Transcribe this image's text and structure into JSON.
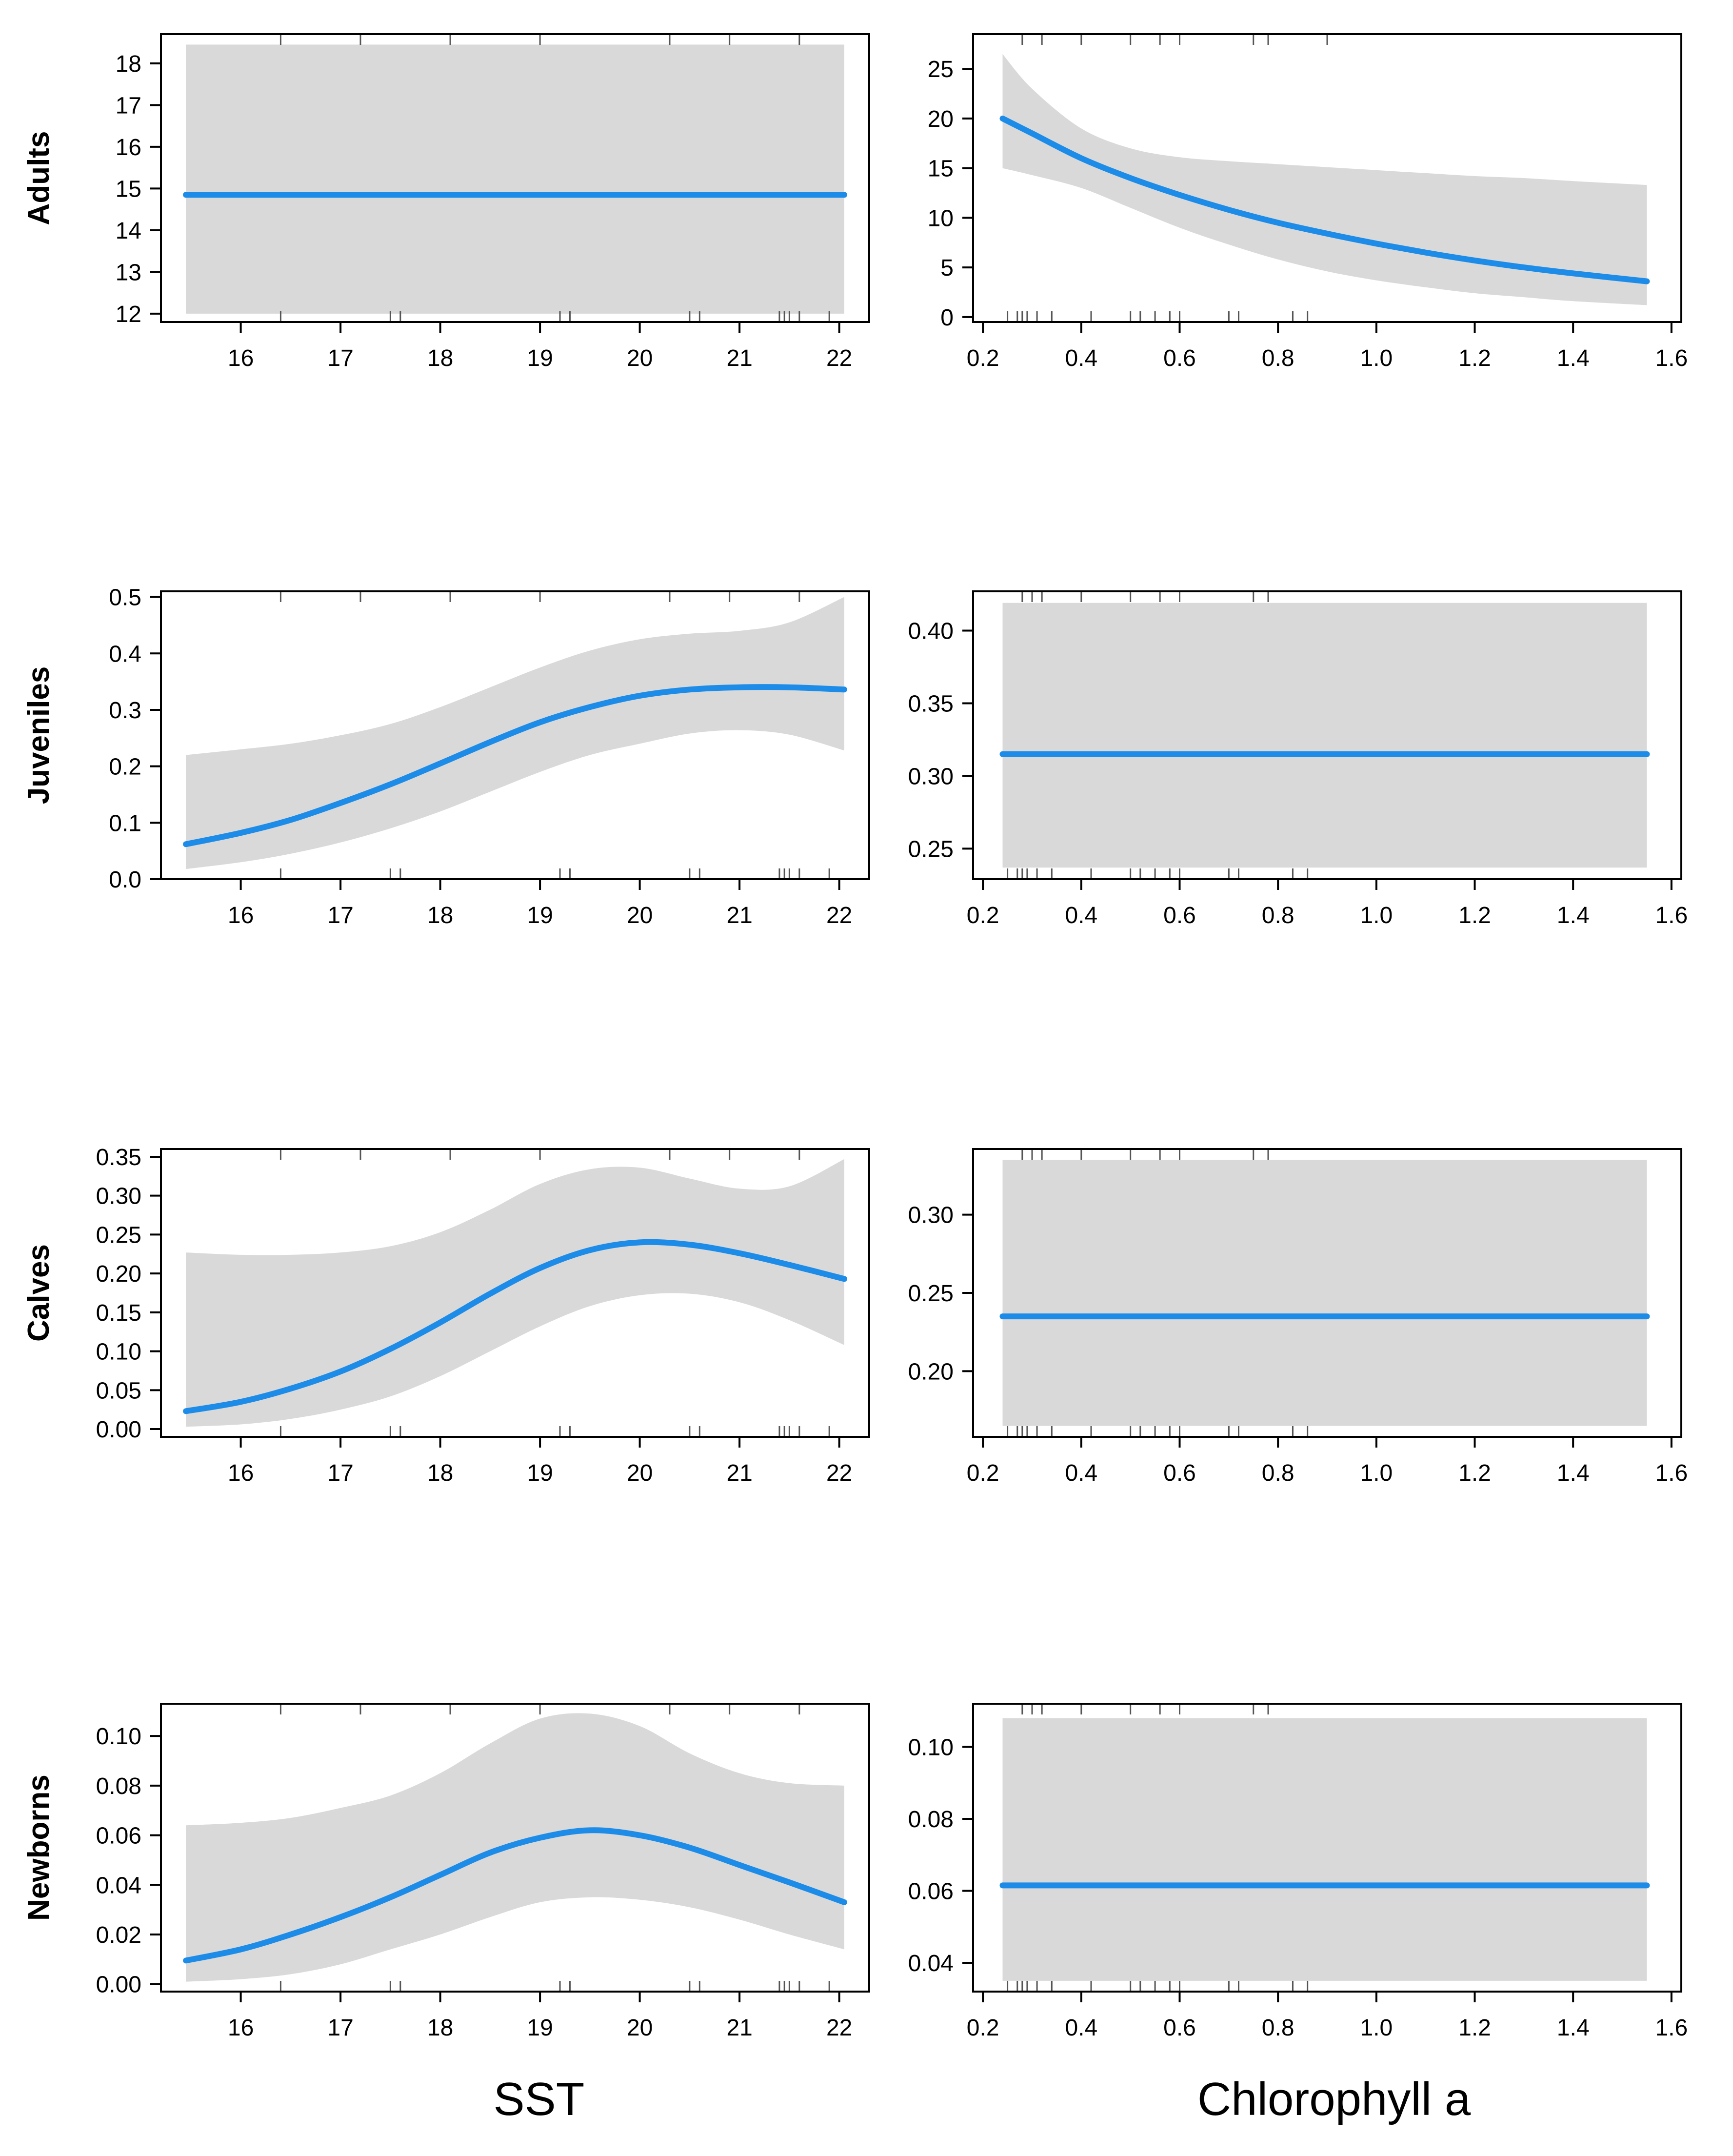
{
  "figure": {
    "x_titles": {
      "left": "SST",
      "right": "Chlorophyll a"
    }
  },
  "colors": {
    "line": "#1c8ce8",
    "band": "#d9d9d9",
    "rug": "#555555",
    "frame": "#000000"
  },
  "chart_data": [
    {
      "id": "adults-sst",
      "type": "line",
      "row_label": "Adults",
      "xlabel": "SST",
      "ylabel": "Adults",
      "xlim": [
        15.2,
        22.3
      ],
      "ylim": [
        11.8,
        18.7
      ],
      "xticks": [
        16,
        17,
        18,
        19,
        20,
        21,
        22
      ],
      "yticks": [
        12,
        13,
        14,
        15,
        16,
        17,
        18
      ],
      "tick_labels_x": [
        "16",
        "17",
        "18",
        "19",
        "20",
        "21",
        "22"
      ],
      "tick_labels_y": [
        "12",
        "13",
        "14",
        "15",
        "16",
        "17",
        "18"
      ],
      "x": [
        15.45,
        22.05
      ],
      "y": [
        14.85,
        14.85
      ],
      "lower": [
        12.0,
        12.0
      ],
      "upper": [
        18.45,
        18.45
      ],
      "rug_top": [
        16.4,
        17.2,
        18.1,
        19.0,
        20.3,
        20.9,
        21.6
      ],
      "rug_bottom": [
        16.4,
        17.5,
        17.6,
        19.2,
        19.3,
        20.5,
        20.6,
        21.4,
        21.45,
        21.5,
        21.6,
        21.9
      ]
    },
    {
      "id": "adults-chl",
      "type": "line",
      "row_label": "",
      "xlabel": "Chlorophyll a",
      "ylabel": "",
      "xlim": [
        0.18,
        1.62
      ],
      "ylim": [
        -0.5,
        28.5
      ],
      "xticks": [
        0.2,
        0.4,
        0.6,
        0.8,
        1.0,
        1.2,
        1.4,
        1.6
      ],
      "yticks": [
        0,
        5,
        10,
        15,
        20,
        25
      ],
      "tick_labels_x": [
        "0.2",
        "0.4",
        "0.6",
        "0.8",
        "1.0",
        "1.2",
        "1.4",
        "1.6"
      ],
      "tick_labels_y": [
        "0",
        "5",
        "10",
        "15",
        "20",
        "25"
      ],
      "x": [
        0.24,
        0.3,
        0.4,
        0.5,
        0.6,
        0.7,
        0.8,
        0.9,
        1.0,
        1.1,
        1.2,
        1.3,
        1.4,
        1.55
      ],
      "y": [
        20.0,
        18.5,
        16.0,
        14.0,
        12.3,
        10.8,
        9.5,
        8.4,
        7.4,
        6.5,
        5.7,
        5.0,
        4.4,
        3.6
      ],
      "lower": [
        15.0,
        14.3,
        13.0,
        11.0,
        9.0,
        7.3,
        5.8,
        4.6,
        3.7,
        3.0,
        2.4,
        2.0,
        1.6,
        1.2
      ],
      "upper": [
        26.5,
        23.0,
        19.0,
        17.0,
        16.1,
        15.7,
        15.4,
        15.1,
        14.8,
        14.5,
        14.2,
        14.0,
        13.7,
        13.3
      ],
      "rug_top": [
        0.28,
        0.32,
        0.4,
        0.5,
        0.56,
        0.6,
        0.75,
        0.78,
        0.9
      ],
      "rug_bottom": [
        0.25,
        0.27,
        0.28,
        0.29,
        0.31,
        0.34,
        0.42,
        0.5,
        0.52,
        0.55,
        0.58,
        0.6,
        0.7,
        0.72,
        0.83,
        0.86
      ]
    },
    {
      "id": "juveniles-sst",
      "type": "line",
      "row_label": "Juveniles",
      "xlabel": "SST",
      "ylabel": "Juveniles",
      "xlim": [
        15.2,
        22.3
      ],
      "ylim": [
        0.0,
        0.51
      ],
      "xticks": [
        16,
        17,
        18,
        19,
        20,
        21,
        22
      ],
      "yticks": [
        0.0,
        0.1,
        0.2,
        0.3,
        0.4,
        0.5
      ],
      "tick_labels_x": [
        "16",
        "17",
        "18",
        "19",
        "20",
        "21",
        "22"
      ],
      "tick_labels_y": [
        "0.0",
        "0.1",
        "0.2",
        "0.3",
        "0.4",
        "0.5"
      ],
      "x": [
        15.45,
        16.0,
        16.5,
        17.0,
        17.5,
        18.0,
        18.5,
        19.0,
        19.5,
        20.0,
        20.5,
        21.0,
        21.5,
        22.05
      ],
      "y": [
        0.062,
        0.082,
        0.105,
        0.135,
        0.168,
        0.205,
        0.243,
        0.278,
        0.305,
        0.325,
        0.336,
        0.34,
        0.34,
        0.336
      ],
      "lower": [
        0.018,
        0.03,
        0.045,
        0.065,
        0.09,
        0.12,
        0.155,
        0.19,
        0.22,
        0.24,
        0.258,
        0.264,
        0.256,
        0.228
      ],
      "upper": [
        0.22,
        0.23,
        0.24,
        0.255,
        0.275,
        0.305,
        0.34,
        0.375,
        0.405,
        0.425,
        0.435,
        0.44,
        0.455,
        0.5
      ],
      "rug_top": [
        16.4,
        17.2,
        18.1,
        19.0,
        20.3,
        20.9,
        21.6
      ],
      "rug_bottom": [
        16.4,
        17.5,
        17.6,
        19.2,
        19.3,
        20.5,
        20.6,
        21.4,
        21.45,
        21.5,
        21.6,
        21.9
      ]
    },
    {
      "id": "juveniles-chl",
      "type": "line",
      "row_label": "",
      "xlabel": "Chlorophyll a",
      "ylabel": "",
      "xlim": [
        0.18,
        1.62
      ],
      "ylim": [
        0.229,
        0.427
      ],
      "xticks": [
        0.2,
        0.4,
        0.6,
        0.8,
        1.0,
        1.2,
        1.4,
        1.6
      ],
      "yticks": [
        0.25,
        0.3,
        0.35,
        0.4
      ],
      "tick_labels_x": [
        "0.2",
        "0.4",
        "0.6",
        "0.8",
        "1.0",
        "1.2",
        "1.4",
        "1.6"
      ],
      "tick_labels_y": [
        "0.25",
        "0.30",
        "0.35",
        "0.40"
      ],
      "x": [
        0.24,
        1.55
      ],
      "y": [
        0.315,
        0.315
      ],
      "lower": [
        0.237,
        0.237
      ],
      "upper": [
        0.419,
        0.419
      ],
      "rug_top": [
        0.28,
        0.3,
        0.32,
        0.4,
        0.5,
        0.56,
        0.6,
        0.75,
        0.78
      ],
      "rug_bottom": [
        0.25,
        0.27,
        0.28,
        0.29,
        0.31,
        0.34,
        0.42,
        0.5,
        0.52,
        0.55,
        0.58,
        0.6,
        0.7,
        0.72,
        0.83,
        0.86
      ]
    },
    {
      "id": "calves-sst",
      "type": "line",
      "row_label": "Calves",
      "xlabel": "SST",
      "ylabel": "Calves",
      "xlim": [
        15.2,
        22.3
      ],
      "ylim": [
        -0.01,
        0.36
      ],
      "xticks": [
        16,
        17,
        18,
        19,
        20,
        21,
        22
      ],
      "yticks": [
        0.0,
        0.05,
        0.1,
        0.15,
        0.2,
        0.25,
        0.3,
        0.35
      ],
      "tick_labels_x": [
        "16",
        "17",
        "18",
        "19",
        "20",
        "21",
        "22"
      ],
      "tick_labels_y": [
        "0.00",
        "0.05",
        "0.10",
        "0.15",
        "0.20",
        "0.25",
        "0.30",
        "0.35"
      ],
      "x": [
        15.45,
        16.0,
        16.5,
        17.0,
        17.5,
        18.0,
        18.5,
        19.0,
        19.5,
        20.0,
        20.5,
        21.0,
        21.5,
        22.05
      ],
      "y": [
        0.023,
        0.035,
        0.052,
        0.074,
        0.103,
        0.137,
        0.174,
        0.207,
        0.23,
        0.24,
        0.237,
        0.226,
        0.211,
        0.193
      ],
      "lower": [
        0.003,
        0.006,
        0.013,
        0.025,
        0.042,
        0.068,
        0.1,
        0.132,
        0.158,
        0.172,
        0.174,
        0.163,
        0.14,
        0.108
      ],
      "upper": [
        0.227,
        0.224,
        0.224,
        0.227,
        0.235,
        0.253,
        0.282,
        0.315,
        0.334,
        0.336,
        0.322,
        0.309,
        0.312,
        0.347
      ],
      "rug_top": [
        16.4,
        17.2,
        18.1,
        19.0,
        20.3,
        20.9,
        21.6
      ],
      "rug_bottom": [
        16.4,
        17.5,
        17.6,
        19.2,
        19.3,
        20.5,
        20.6,
        21.4,
        21.45,
        21.5,
        21.6,
        21.9
      ]
    },
    {
      "id": "calves-chl",
      "type": "line",
      "row_label": "",
      "xlabel": "Chlorophyll a",
      "ylabel": "",
      "xlim": [
        0.18,
        1.62
      ],
      "ylim": [
        0.158,
        0.342
      ],
      "xticks": [
        0.2,
        0.4,
        0.6,
        0.8,
        1.0,
        1.2,
        1.4,
        1.6
      ],
      "yticks": [
        0.2,
        0.25,
        0.3
      ],
      "tick_labels_x": [
        "0.2",
        "0.4",
        "0.6",
        "0.8",
        "1.0",
        "1.2",
        "1.4",
        "1.6"
      ],
      "tick_labels_y": [
        "0.20",
        "0.25",
        "0.30"
      ],
      "x": [
        0.24,
        1.55
      ],
      "y": [
        0.235,
        0.235
      ],
      "lower": [
        0.165,
        0.165
      ],
      "upper": [
        0.335,
        0.335
      ],
      "rug_top": [
        0.28,
        0.3,
        0.32,
        0.4,
        0.5,
        0.56,
        0.6,
        0.75,
        0.78
      ],
      "rug_bottom": [
        0.25,
        0.27,
        0.28,
        0.29,
        0.31,
        0.34,
        0.42,
        0.5,
        0.52,
        0.55,
        0.58,
        0.6,
        0.7,
        0.72,
        0.83,
        0.86
      ]
    },
    {
      "id": "newborns-sst",
      "type": "line",
      "row_label": "Newborns",
      "xlabel": "SST",
      "ylabel": "Newborns",
      "xlim": [
        15.2,
        22.3
      ],
      "ylim": [
        -0.003,
        0.113
      ],
      "xticks": [
        16,
        17,
        18,
        19,
        20,
        21,
        22
      ],
      "yticks": [
        0.0,
        0.02,
        0.04,
        0.06,
        0.08,
        0.1
      ],
      "tick_labels_x": [
        "16",
        "17",
        "18",
        "19",
        "20",
        "21",
        "22"
      ],
      "tick_labels_y": [
        "0.00",
        "0.02",
        "0.04",
        "0.06",
        "0.08",
        "0.10"
      ],
      "x": [
        15.45,
        16.0,
        16.5,
        17.0,
        17.5,
        18.0,
        18.5,
        19.0,
        19.5,
        20.0,
        20.5,
        21.0,
        21.5,
        22.05
      ],
      "y": [
        0.0095,
        0.014,
        0.02,
        0.027,
        0.035,
        0.044,
        0.053,
        0.059,
        0.062,
        0.06,
        0.055,
        0.048,
        0.041,
        0.033
      ],
      "lower": [
        0.001,
        0.002,
        0.004,
        0.008,
        0.014,
        0.02,
        0.027,
        0.033,
        0.035,
        0.034,
        0.031,
        0.026,
        0.02,
        0.014
      ],
      "upper": [
        0.064,
        0.065,
        0.067,
        0.071,
        0.076,
        0.085,
        0.097,
        0.107,
        0.109,
        0.104,
        0.093,
        0.085,
        0.081,
        0.08
      ],
      "rug_top": [
        16.4,
        17.2,
        18.1,
        19.0,
        20.3,
        20.9,
        21.6
      ],
      "rug_bottom": [
        16.4,
        17.5,
        17.6,
        19.2,
        19.3,
        20.5,
        20.6,
        21.4,
        21.45,
        21.5,
        21.6,
        21.9
      ]
    },
    {
      "id": "newborns-chl",
      "type": "line",
      "row_label": "",
      "xlabel": "Chlorophyll a",
      "ylabel": "",
      "xlim": [
        0.18,
        1.62
      ],
      "ylim": [
        0.032,
        0.112
      ],
      "xticks": [
        0.2,
        0.4,
        0.6,
        0.8,
        1.0,
        1.2,
        1.4,
        1.6
      ],
      "yticks": [
        0.04,
        0.06,
        0.08,
        0.1
      ],
      "tick_labels_x": [
        "0.2",
        "0.4",
        "0.6",
        "0.8",
        "1.0",
        "1.2",
        "1.4",
        "1.6"
      ],
      "tick_labels_y": [
        "0.04",
        "0.06",
        "0.08",
        "0.10"
      ],
      "x": [
        0.24,
        1.55
      ],
      "y": [
        0.0615,
        0.0615
      ],
      "lower": [
        0.035,
        0.035
      ],
      "upper": [
        0.108,
        0.108
      ],
      "rug_top": [
        0.28,
        0.3,
        0.32,
        0.4,
        0.5,
        0.56,
        0.6,
        0.75,
        0.78
      ],
      "rug_bottom": [
        0.25,
        0.27,
        0.28,
        0.29,
        0.31,
        0.34,
        0.42,
        0.5,
        0.52,
        0.55,
        0.58,
        0.6,
        0.7,
        0.72,
        0.83,
        0.86
      ]
    }
  ]
}
